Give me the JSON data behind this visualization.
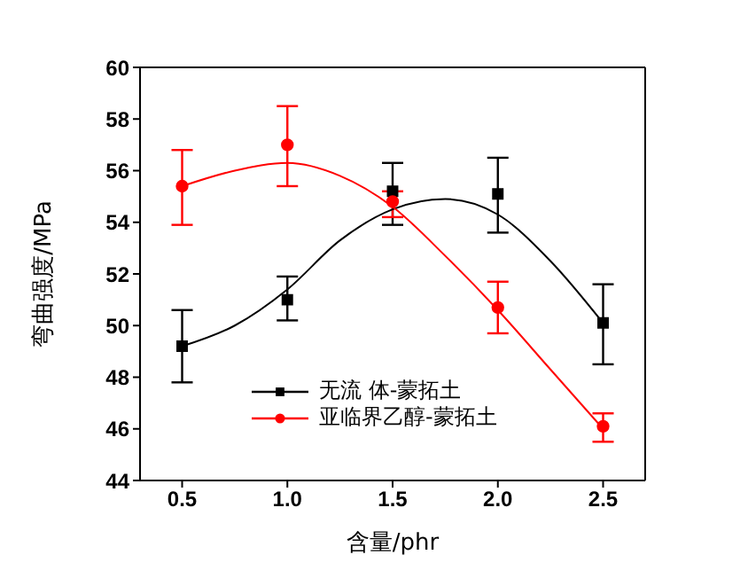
{
  "chart_data": {
    "type": "scatter",
    "xlabel": "含量/phr",
    "ylabel": "弯曲强度/MPa",
    "x": [
      0.5,
      1.0,
      1.5,
      2.0,
      2.5
    ],
    "series": [
      {
        "name": "无流 体-蒙拓土",
        "color": "#000000",
        "marker": "square",
        "values": [
          49.2,
          51.0,
          55.2,
          55.1,
          50.1
        ],
        "errors": [
          [
            47.8,
            50.6
          ],
          [
            50.2,
            51.9
          ],
          [
            53.9,
            56.3
          ],
          [
            53.6,
            56.5
          ],
          [
            48.5,
            51.6
          ]
        ]
      },
      {
        "name": "亚临界乙醇-蒙拓土",
        "color": "#ff0000",
        "marker": "circle",
        "values": [
          55.4,
          57.0,
          54.8,
          50.7,
          46.1
        ],
        "errors": [
          [
            53.9,
            56.8
          ],
          [
            55.4,
            58.5
          ],
          [
            54.2,
            55.2
          ],
          [
            49.7,
            51.7
          ],
          [
            45.5,
            46.6
          ]
        ]
      },
      {
        "type": "line",
        "color": "#000000",
        "marker": "none",
        "x": [
          0.5,
          0.75,
          1.0,
          1.25,
          1.5,
          1.75,
          2.0,
          2.25,
          2.5
        ],
        "values": [
          49.2,
          50.0,
          51.4,
          53.3,
          54.5,
          54.9,
          54.3,
          52.5,
          50.1
        ]
      },
      {
        "type": "line",
        "color": "#ff0000",
        "marker": "none",
        "x": [
          0.5,
          0.75,
          1.0,
          1.25,
          1.5,
          1.75,
          2.0,
          2.25,
          2.5
        ],
        "values": [
          55.4,
          56.0,
          56.3,
          55.8,
          54.6,
          52.7,
          50.6,
          48.3,
          46.0
        ]
      }
    ],
    "xlim": [
      0.3,
      2.7
    ],
    "xticks": [
      0.5,
      {
        "value": 1,
        "label": "1.0"
      },
      1.5,
      {
        "value": 2,
        "label": "2.0"
      },
      2.5
    ],
    "ylim": [
      44,
      60
    ],
    "yticks": [
      44,
      46,
      48,
      50,
      52,
      54,
      56,
      58,
      60
    ],
    "legend": "bottom"
  }
}
